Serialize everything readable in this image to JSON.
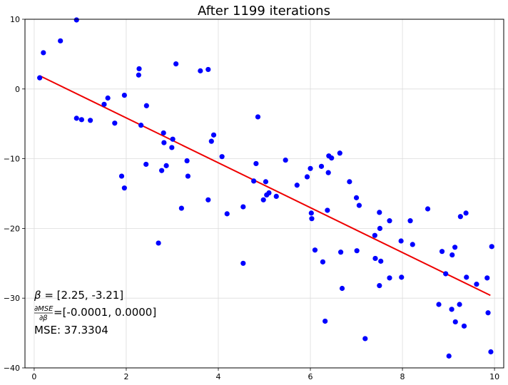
{
  "chart_data": {
    "type": "scatter",
    "title": "After 1199 iterations",
    "xlabel": "",
    "ylabel": "",
    "xlim": [
      -0.2,
      10.2
    ],
    "ylim": [
      -40,
      10
    ],
    "x_ticks": [
      0,
      2,
      4,
      6,
      8,
      10
    ],
    "y_ticks": [
      10,
      0,
      -10,
      -20,
      -30,
      -40
    ],
    "grid": true,
    "colors": {
      "points": "#0000ff",
      "fit_line": "#ee0000",
      "grid": "#dcdcdc",
      "axes": "#000000"
    },
    "series": [
      {
        "kind": "scatter",
        "points": [
          [
            0.12,
            1.6
          ],
          [
            0.2,
            5.2
          ],
          [
            0.57,
            6.9
          ],
          [
            0.92,
            9.9
          ],
          [
            0.92,
            -4.2
          ],
          [
            1.03,
            -4.4
          ],
          [
            1.22,
            -4.5
          ],
          [
            1.52,
            -2.2
          ],
          [
            1.6,
            -1.3
          ],
          [
            1.75,
            -4.9
          ],
          [
            1.9,
            -12.5
          ],
          [
            1.96,
            -14.2
          ],
          [
            1.96,
            -0.9
          ],
          [
            2.27,
            2.0
          ],
          [
            2.28,
            2.9
          ],
          [
            2.32,
            -5.2
          ],
          [
            2.43,
            -10.8
          ],
          [
            2.44,
            -2.4
          ],
          [
            2.7,
            -22.1
          ],
          [
            2.77,
            -11.7
          ],
          [
            2.81,
            -6.3
          ],
          [
            2.82,
            -7.7
          ],
          [
            2.87,
            -11.0
          ],
          [
            2.99,
            -8.4
          ],
          [
            3.01,
            -7.2
          ],
          [
            3.08,
            3.6
          ],
          [
            3.2,
            -17.1
          ],
          [
            3.32,
            -10.3
          ],
          [
            3.34,
            -12.5
          ],
          [
            3.61,
            2.6
          ],
          [
            3.78,
            2.8
          ],
          [
            3.78,
            -15.9
          ],
          [
            3.85,
            -7.5
          ],
          [
            3.9,
            -6.6
          ],
          [
            4.08,
            -9.7
          ],
          [
            4.19,
            -17.9
          ],
          [
            4.54,
            -16.9
          ],
          [
            4.54,
            -25.0
          ],
          [
            4.77,
            -13.2
          ],
          [
            4.82,
            -10.7
          ],
          [
            4.86,
            -4.0
          ],
          [
            4.98,
            -15.9
          ],
          [
            5.03,
            -13.3
          ],
          [
            5.05,
            -15.2
          ],
          [
            5.1,
            -14.9
          ],
          [
            5.26,
            -15.4
          ],
          [
            5.46,
            -10.2
          ],
          [
            5.71,
            -13.8
          ],
          [
            5.93,
            -12.6
          ],
          [
            6.0,
            -11.4
          ],
          [
            6.02,
            -17.8
          ],
          [
            6.03,
            -18.6
          ],
          [
            6.1,
            -23.1
          ],
          [
            6.24,
            -11.1
          ],
          [
            6.27,
            -24.8
          ],
          [
            6.32,
            -33.3
          ],
          [
            6.37,
            -17.4
          ],
          [
            6.39,
            -12.0
          ],
          [
            6.4,
            -9.6
          ],
          [
            6.46,
            -9.9
          ],
          [
            6.64,
            -9.2
          ],
          [
            6.66,
            -23.4
          ],
          [
            6.69,
            -28.6
          ],
          [
            6.85,
            -13.3
          ],
          [
            7.0,
            -15.6
          ],
          [
            7.01,
            -23.2
          ],
          [
            7.06,
            -16.7
          ],
          [
            7.19,
            -35.8
          ],
          [
            7.4,
            -21.0
          ],
          [
            7.41,
            -24.3
          ],
          [
            7.5,
            -17.7
          ],
          [
            7.5,
            -28.2
          ],
          [
            7.51,
            -20.0
          ],
          [
            7.53,
            -24.7
          ],
          [
            7.72,
            -27.1
          ],
          [
            7.72,
            -18.9
          ],
          [
            7.97,
            -21.8
          ],
          [
            7.98,
            -27.0
          ],
          [
            8.17,
            -18.9
          ],
          [
            8.22,
            -22.3
          ],
          [
            8.55,
            -17.2
          ],
          [
            8.79,
            -30.9
          ],
          [
            8.86,
            -23.3
          ],
          [
            8.94,
            -26.5
          ],
          [
            9.01,
            -38.3
          ],
          [
            9.07,
            -31.6
          ],
          [
            9.08,
            -23.8
          ],
          [
            9.14,
            -22.7
          ],
          [
            9.15,
            -33.4
          ],
          [
            9.24,
            -30.9
          ],
          [
            9.26,
            -18.3
          ],
          [
            9.34,
            -34.0
          ],
          [
            9.38,
            -17.8
          ],
          [
            9.39,
            -27.0
          ],
          [
            9.61,
            -28.0
          ],
          [
            9.84,
            -27.1
          ],
          [
            9.86,
            -32.1
          ],
          [
            9.92,
            -37.7
          ],
          [
            9.94,
            -22.6
          ]
        ]
      },
      {
        "kind": "line",
        "points": [
          [
            0.12,
            1.9
          ],
          [
            9.91,
            -29.6
          ]
        ]
      }
    ]
  },
  "annotations": {
    "beta_symbol": "β",
    "beta_rest": " = [2.25, -3.21]",
    "grad_numerator": "∂MSE",
    "grad_denominator": "∂β",
    "grad_values": "=[-0.0001, 0.0000]",
    "mse": "MSE: 37.3304"
  }
}
